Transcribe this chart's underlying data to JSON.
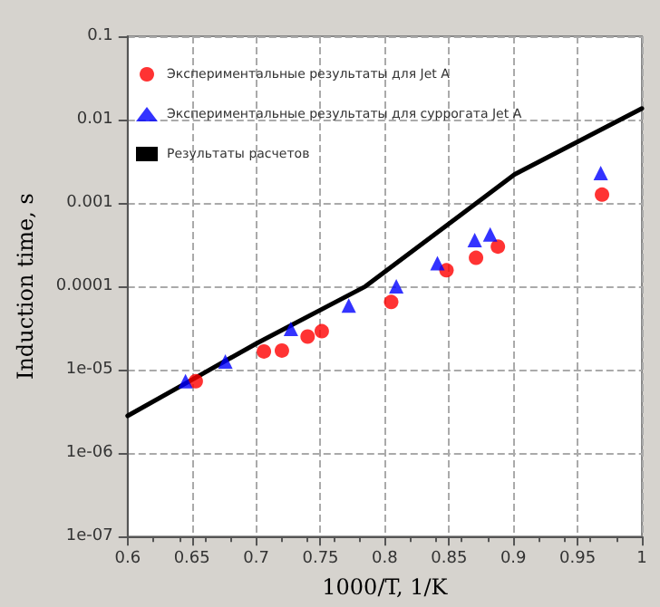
{
  "chart_data": {
    "type": "scatter",
    "xlabel": "1000/T, 1/K",
    "ylabel": "Induction time, s",
    "log": "y",
    "grid": true,
    "legend": "top left",
    "xlim": [
      0.6,
      1
    ],
    "xticks": [
      0.6,
      0.65,
      0.7,
      0.75,
      0.8,
      0.85,
      0.9,
      0.95,
      1
    ],
    "ylim": [
      1e-07,
      0.1
    ],
    "yticks": [
      {
        "value": 1e-07,
        "label": "1e-07"
      },
      {
        "value": 1e-06,
        "label": "1e-06"
      },
      {
        "value": 1e-05,
        "label": "1e-05"
      },
      0.0001,
      0.001,
      0.01,
      0.1
    ],
    "series": [
      {
        "name": "Экспериментальные результаты для Jet A",
        "marker": "circle",
        "color": "#ff0000",
        "x": [
          0.653,
          0.706,
          0.72,
          0.74,
          0.751,
          0.805,
          0.848,
          0.871,
          0.888,
          0.969
        ],
        "values": [
          7.3e-06,
          1.66e-05,
          1.7e-05,
          2.5e-05,
          2.9e-05,
          6.5e-05,
          0.000156,
          0.00022,
          0.0003,
          0.00126
        ]
      },
      {
        "name": "Экспериментальные результаты для суррогата Jet A",
        "marker": "triangle",
        "color": "#0000ff",
        "x": [
          0.645,
          0.676,
          0.727,
          0.772,
          0.809,
          0.841,
          0.87,
          0.882,
          0.968
        ],
        "values": [
          7.3e-06,
          1.26e-05,
          3.1e-05,
          5.9e-05,
          0.0001,
          0.00019,
          0.00036,
          0.00042,
          0.00228
        ]
      },
      {
        "name": "Результаты расчетов",
        "type": "line",
        "marker": "none",
        "line_style": "solid",
        "color": "#000000",
        "x": [
          0.6,
          0.652,
          0.701,
          0.785,
          0.901,
          1.0
        ],
        "values": [
          2.8e-06,
          7.9e-06,
          2.1e-05,
          0.0001,
          0.0022,
          0.0136
        ]
      }
    ]
  }
}
